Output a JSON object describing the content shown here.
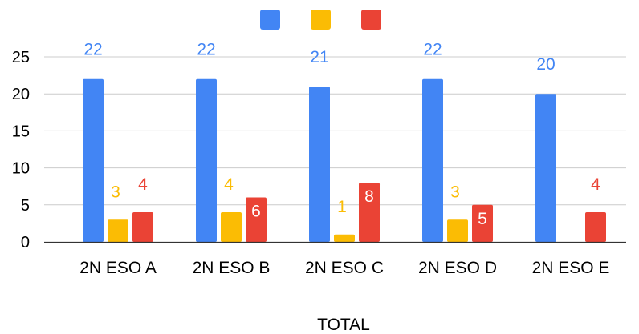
{
  "chart_data": {
    "type": "bar",
    "title": "",
    "xlabel": "TOTAL",
    "ylabel": "",
    "ylim": [
      0,
      25
    ],
    "yticks": [
      0,
      5,
      10,
      15,
      20,
      25
    ],
    "grid": true,
    "legend_position": "top",
    "categories": [
      "2N ESO A",
      "2N ESO B",
      "2N ESO C",
      "2N ESO D",
      "2N ESO E"
    ],
    "series": [
      {
        "color": "#4285F4",
        "values": [
          22,
          22,
          21,
          22,
          20
        ],
        "labels": [
          "22",
          "22",
          "21",
          "22",
          "20"
        ]
      },
      {
        "color": "#FBBC04",
        "values": [
          3,
          4,
          1,
          3,
          0
        ],
        "labels": [
          "3",
          "4",
          "1",
          "3",
          ""
        ]
      },
      {
        "color": "#EA4335",
        "values": [
          4,
          6,
          8,
          5,
          4
        ],
        "labels": [
          "4",
          "6",
          "8",
          "5",
          "4"
        ]
      }
    ]
  }
}
